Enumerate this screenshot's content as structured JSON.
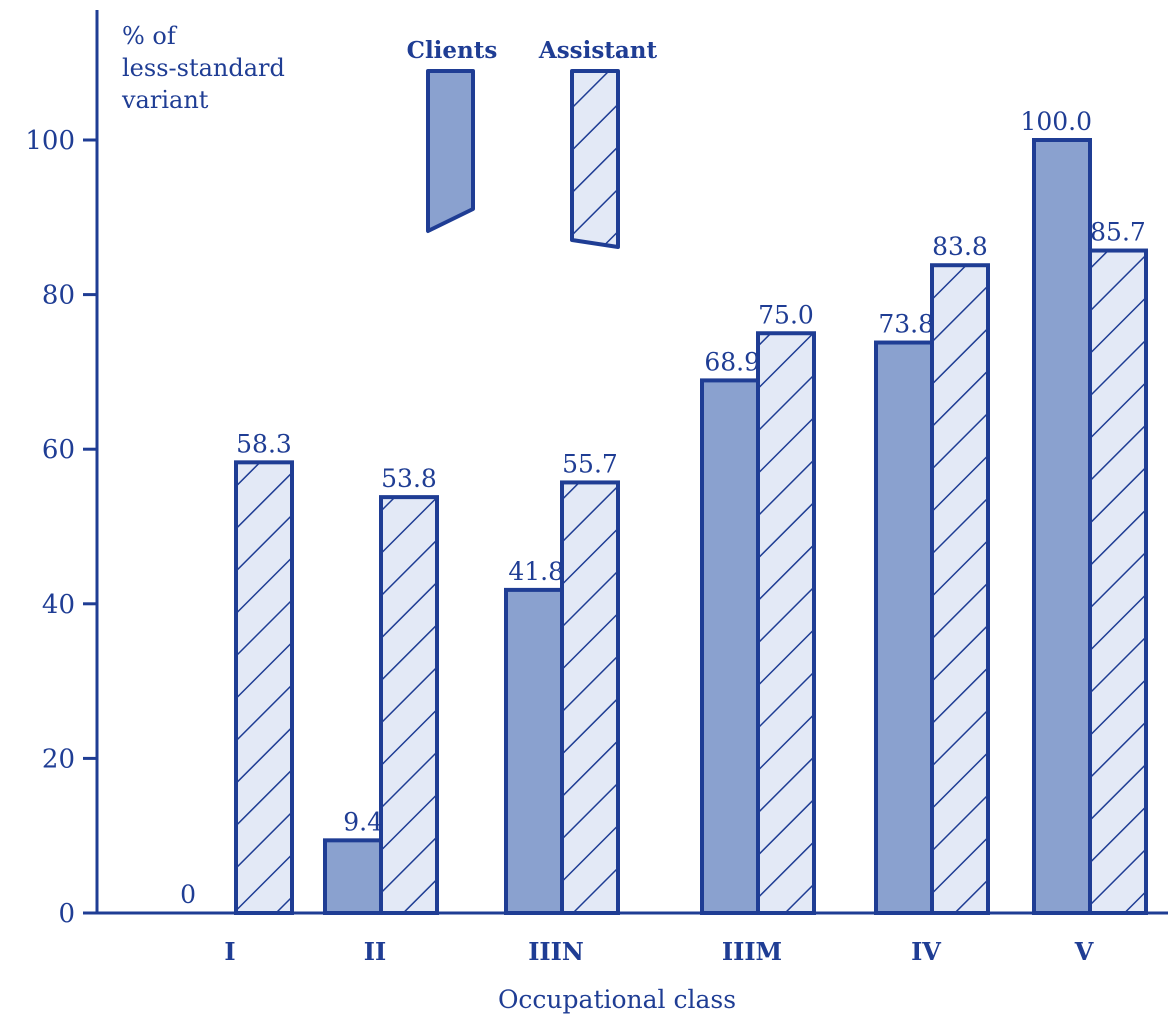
{
  "chart_data": {
    "type": "bar",
    "ylabel": [
      "% of",
      "less-standard",
      "variant"
    ],
    "xlabel": "Occupational class",
    "categories": [
      "I",
      "II",
      "IIIN",
      "IIIM",
      "IV",
      "V"
    ],
    "series": [
      {
        "name": "Clients",
        "values": [
          0,
          9.4,
          41.8,
          68.9,
          73.8,
          100.0
        ],
        "labels": [
          "0",
          "9.4",
          "41.8",
          "68.9",
          "73.8",
          "100.0"
        ],
        "fill": "#8aa1cf",
        "pattern": "solid"
      },
      {
        "name": "Assistant",
        "values": [
          58.3,
          53.8,
          55.7,
          75.0,
          83.8,
          85.7
        ],
        "labels": [
          "58.3",
          "53.8",
          "55.7",
          "75.0",
          "83.8",
          "85.7"
        ],
        "fill": "#e3e9f6",
        "pattern": "hatched"
      }
    ],
    "ylim": [
      0,
      100
    ],
    "yticks": [
      0,
      20,
      40,
      60,
      80,
      100
    ],
    "grid": false,
    "legend_position": "top-center",
    "colors": {
      "ink": "#1f3d94",
      "axis": "#1f3d94"
    }
  }
}
